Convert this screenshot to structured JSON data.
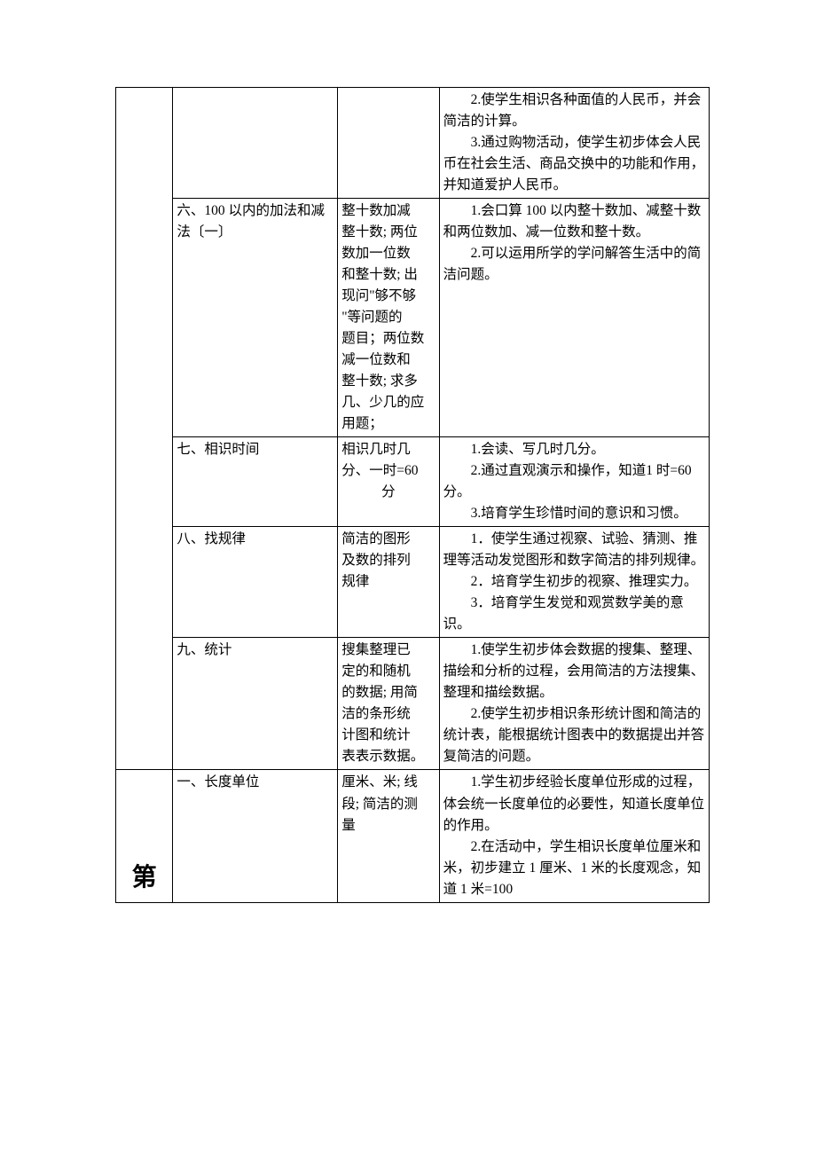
{
  "rows": [
    {
      "col0": "",
      "col1": "",
      "col2": "",
      "col3": [
        {
          "cls": "indent",
          "text": "2.使学生相识各种面值的人民币，并会简洁的计算。"
        },
        {
          "cls": "indent",
          "text": "3.通过购物活动，使学生初步体会人民币在社会生活、商品交换中的功能和作用，并知道爱护人民币。"
        }
      ]
    },
    {
      "col1": "六、100 以内的加法和减法〔一〕",
      "col2_lines": [
        {
          "cls": "justify-dist",
          "text": "整十数加减"
        },
        {
          "cls": "justify-dist",
          "text": "整十数; 两位"
        },
        {
          "cls": "justify-dist",
          "text": "数加一位数"
        },
        {
          "cls": "justify-dist",
          "text": "和整十数; 出"
        },
        {
          "cls": "justify-dist",
          "text": "现问\"够不够"
        },
        {
          "cls": "justify-dist",
          "text": "\"等问题的"
        },
        {
          "cls": "justify-dist",
          "text": "题目；两位数"
        },
        {
          "cls": "justify-dist",
          "text": "减一位数和"
        },
        {
          "cls": "justify-dist",
          "text": "整十数; 求多"
        },
        {
          "cls": "justify-dist",
          "text": "几、少几的应"
        },
        {
          "cls": "",
          "text": "用题；"
        }
      ],
      "col3": [
        {
          "cls": "indent",
          "text": "1.会口算 100 以内整十数加、减整十数和两位数加、减一位数和整十数。"
        },
        {
          "cls": "indent",
          "text": "2.可以运用所学的学问解答生活中的简洁问题。"
        }
      ]
    },
    {
      "col1": "七、相识时间",
      "col2_lines": [
        {
          "cls": "",
          "text": "相识几时几"
        },
        {
          "cls": "",
          "text": "分、一时=60"
        },
        {
          "cls": "center",
          "text": "分"
        }
      ],
      "col3": [
        {
          "cls": "indent",
          "text": "1.会读、写几时几分。"
        },
        {
          "cls": "indent",
          "text": "2.通过直观演示和操作，知道1 时=60 分。"
        },
        {
          "cls": "indent",
          "text": "3.培育学生珍惜时间的意识和习惯。"
        }
      ]
    },
    {
      "col1": "八、找规律",
      "col2_lines": [
        {
          "cls": "justify-dist",
          "text": "简洁的图形"
        },
        {
          "cls": "justify-dist",
          "text": "及数的排列"
        },
        {
          "cls": "",
          "text": "规律"
        }
      ],
      "col3": [
        {
          "cls": "indent",
          "text": "1．使学生通过视察、试验、猜测、推理等活动发觉图形和数字简洁的排列规律。"
        },
        {
          "cls": "indent",
          "text": "2．培育学生初步的视察、推理实力。"
        },
        {
          "cls": "indent",
          "text": "3．培育学生发觉和观赏数学美的意识。"
        }
      ]
    },
    {
      "col1": "九、统计",
      "col2_lines": [
        {
          "cls": "justify-dist",
          "text": "搜集整理已"
        },
        {
          "cls": "justify-dist",
          "text": "定的和随机"
        },
        {
          "cls": "justify-dist",
          "text": "的数据; 用简"
        },
        {
          "cls": "justify-dist",
          "text": "洁的条形统"
        },
        {
          "cls": "justify-dist",
          "text": "计图和统计"
        },
        {
          "cls": "",
          "text": "表表示数据。"
        }
      ],
      "col3": [
        {
          "cls": "indent",
          "text": "1.使学生初步体会数据的搜集、整理、描绘和分析的过程，会用简洁的方法搜集、整理和描绘数据。"
        },
        {
          "cls": "indent",
          "text": "2.使学生初步相识条形统计图和简洁的统计表，能根据统计图表中的数据提出并答复简洁的问题。"
        }
      ]
    },
    {
      "col0_big": "第",
      "col1": "一、长度单位",
      "col2_lines": [
        {
          "cls": "justify-dist",
          "text": "厘米、米; 线"
        },
        {
          "cls": "justify-dist",
          "text": "段; 简洁的测"
        },
        {
          "cls": "",
          "text": "量"
        }
      ],
      "col3": [
        {
          "cls": "indent",
          "text": "1.学生初步经验长度单位形成的过程，体会统一长度单位的必要性，知道长度单位的作用。"
        },
        {
          "cls": "indent",
          "text": "2.在活动中，学生相识长度单位厘米和米，初步建立 1 厘米、1 米的长度观念，知道 1 米=100"
        }
      ]
    }
  ]
}
